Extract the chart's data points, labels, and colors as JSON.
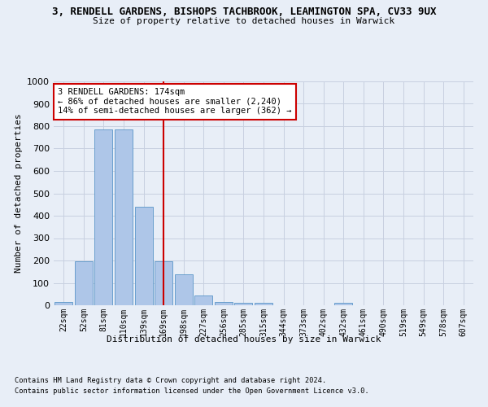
{
  "title_line1": "3, RENDELL GARDENS, BISHOPS TACHBROOK, LEAMINGTON SPA, CV33 9UX",
  "title_line2": "Size of property relative to detached houses in Warwick",
  "xlabel": "Distribution of detached houses by size in Warwick",
  "ylabel": "Number of detached properties",
  "footer_line1": "Contains HM Land Registry data © Crown copyright and database right 2024.",
  "footer_line2": "Contains public sector information licensed under the Open Government Licence v3.0.",
  "categories": [
    "22sqm",
    "52sqm",
    "81sqm",
    "110sqm",
    "139sqm",
    "169sqm",
    "198sqm",
    "227sqm",
    "256sqm",
    "285sqm",
    "315sqm",
    "344sqm",
    "373sqm",
    "402sqm",
    "432sqm",
    "461sqm",
    "490sqm",
    "519sqm",
    "549sqm",
    "578sqm",
    "607sqm"
  ],
  "values": [
    15,
    195,
    785,
    785,
    440,
    195,
    140,
    45,
    15,
    10,
    10,
    0,
    0,
    0,
    10,
    0,
    0,
    0,
    0,
    0,
    0
  ],
  "bar_color": "#aec6e8",
  "bar_edge_color": "#5a96c8",
  "vline_x": 5.0,
  "vline_color": "#cc0000",
  "annotation_text": "3 RENDELL GARDENS: 174sqm\n← 86% of detached houses are smaller (2,240)\n14% of semi-detached houses are larger (362) →",
  "annotation_box_color": "#ffffff",
  "annotation_box_edge_color": "#cc0000",
  "ylim": [
    0,
    1000
  ],
  "yticks": [
    0,
    100,
    200,
    300,
    400,
    500,
    600,
    700,
    800,
    900,
    1000
  ],
  "bg_color": "#e8eef7",
  "plot_bg_color": "#e8eef7",
  "grid_color": "#c8d0e0"
}
